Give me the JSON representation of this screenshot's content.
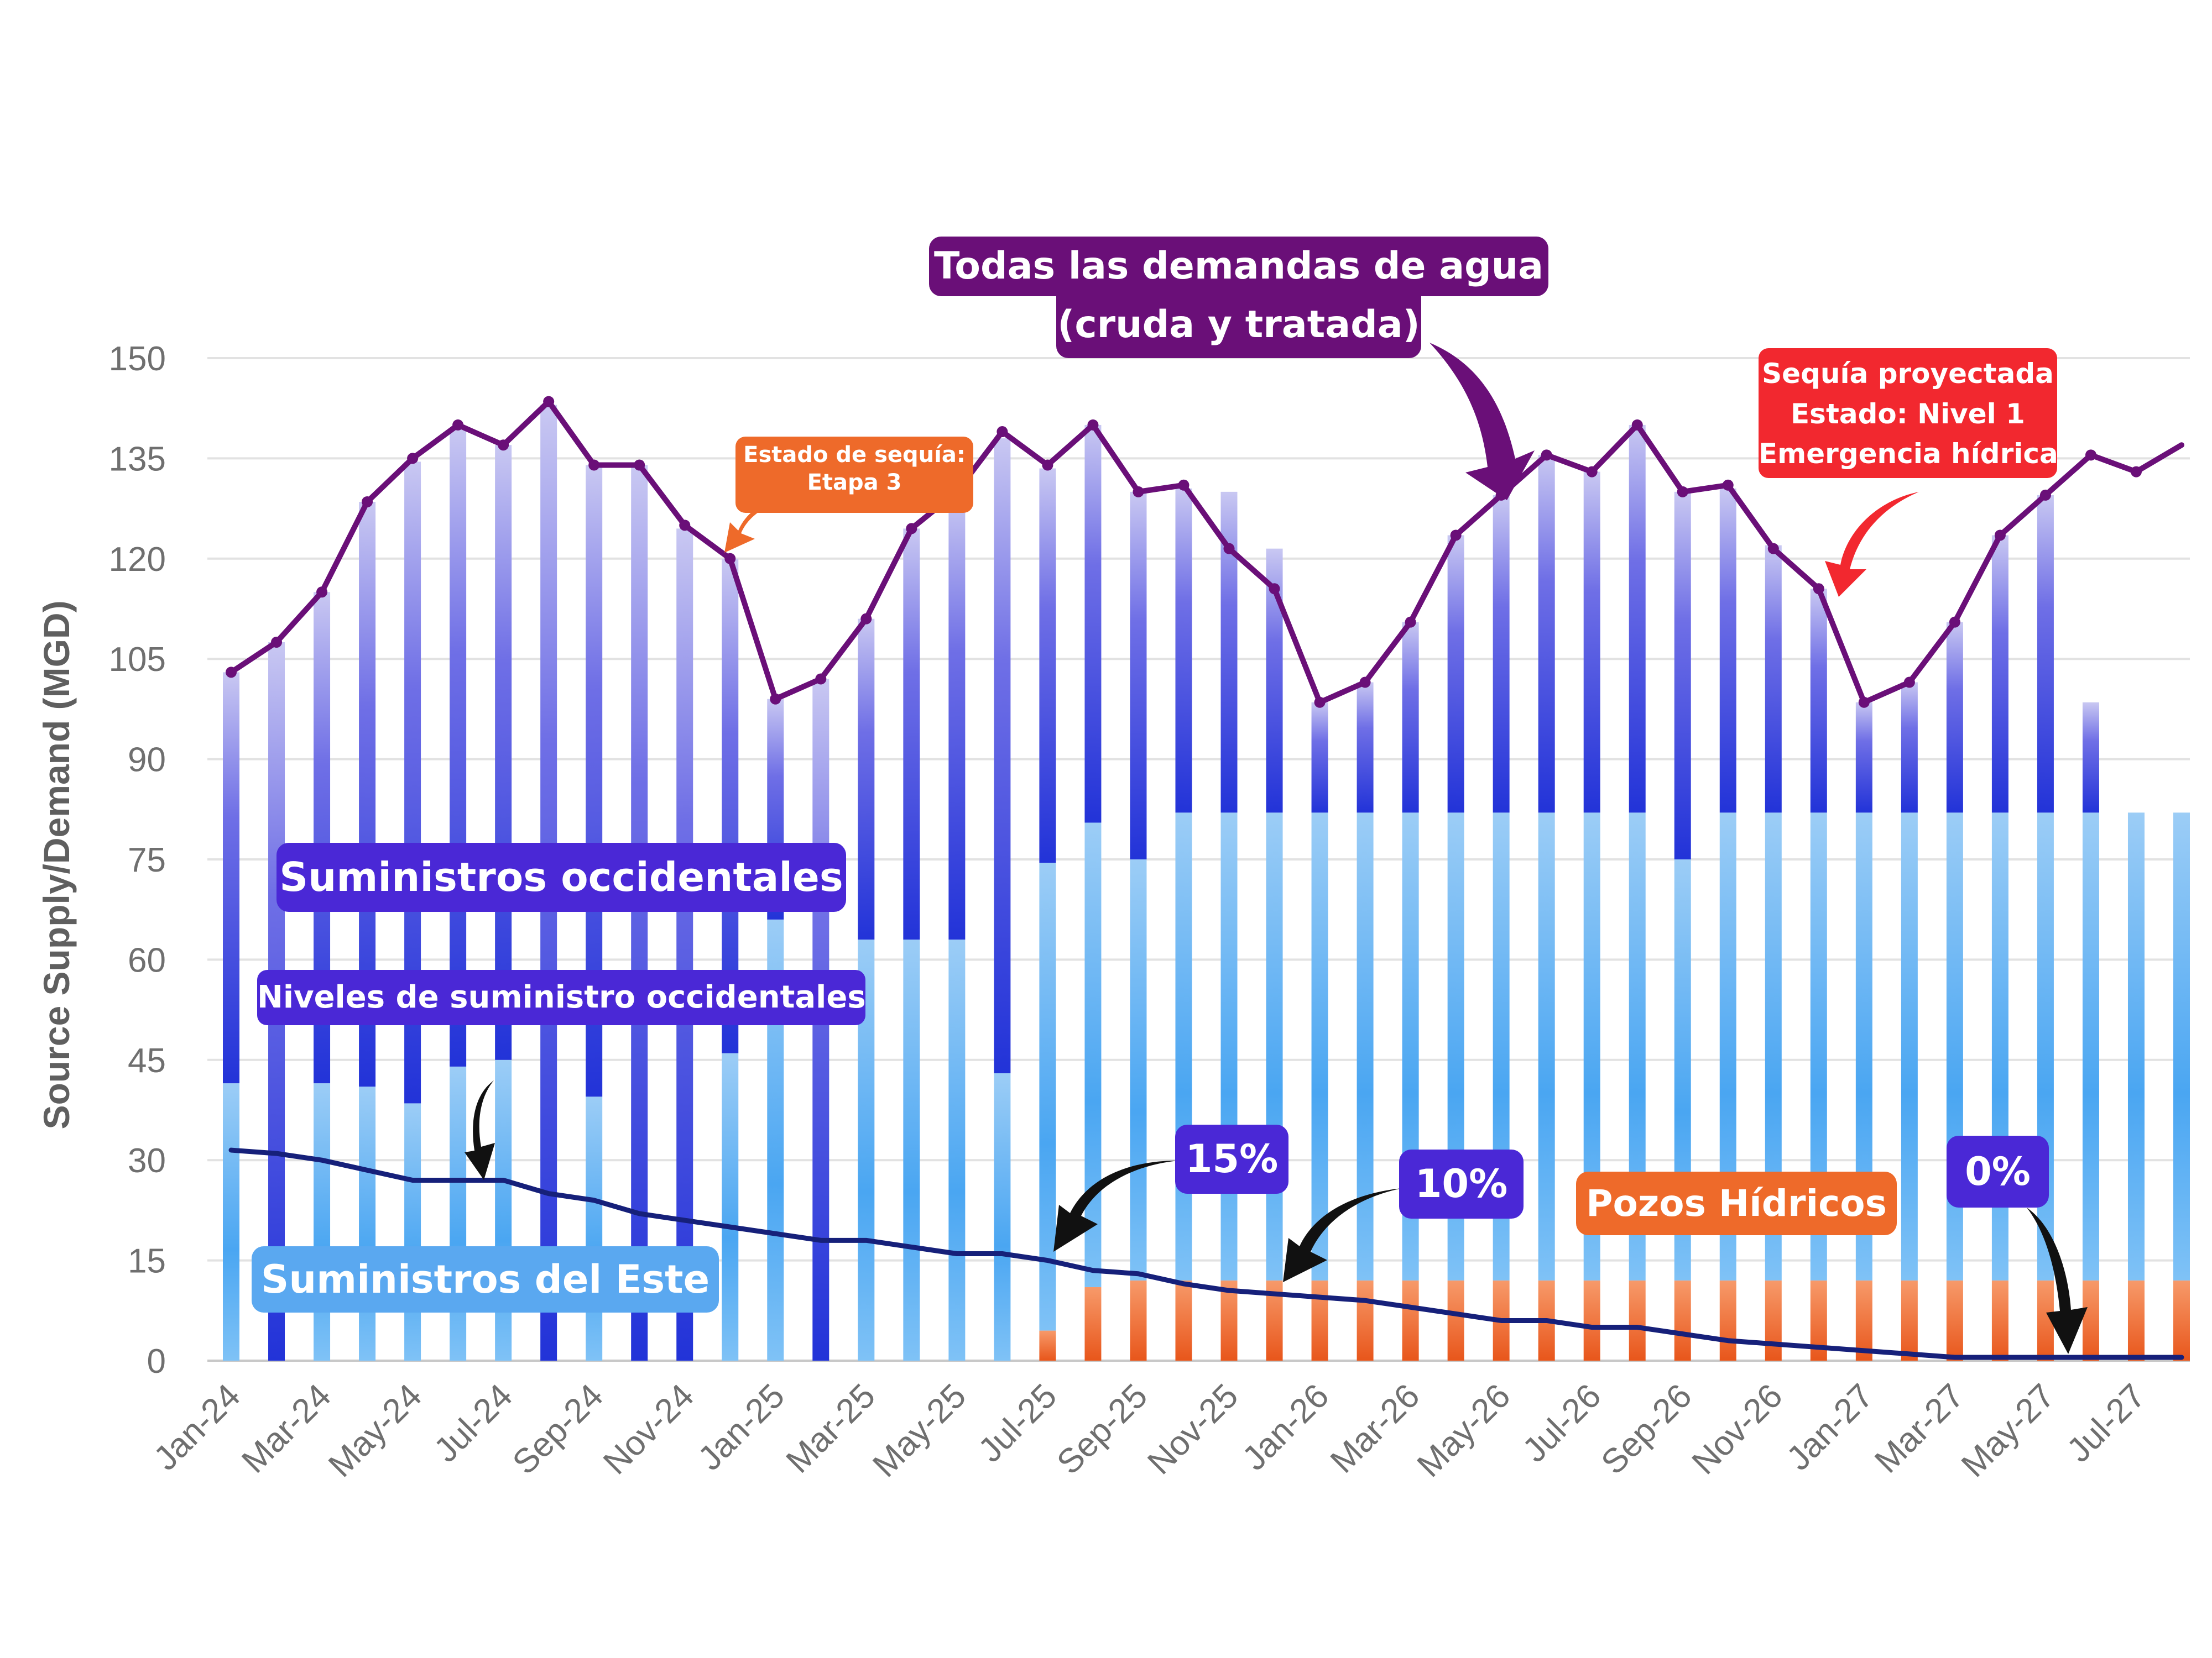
{
  "chart_data": {
    "type": "bar",
    "ylabel": "Source Supply/Demand (MGD)",
    "ylim": [
      0,
      150
    ],
    "yticks": [
      0,
      15,
      30,
      45,
      60,
      75,
      90,
      105,
      120,
      135,
      150
    ],
    "grid": "horizontal",
    "x": [
      "Jan-24",
      "Feb-24",
      "Mar-24",
      "Apr-24",
      "May-24",
      "Jun-24",
      "Jul-24",
      "Aug-24",
      "Sep-24",
      "Oct-24",
      "Nov-24",
      "Dec-24",
      "Jan-25",
      "Feb-25",
      "Mar-25",
      "Apr-25",
      "May-25",
      "Jun-25",
      "Jul-25",
      "Aug-25",
      "Sep-25",
      "Oct-25",
      "Nov-25",
      "Dec-25",
      "Jan-26",
      "Feb-26",
      "Mar-26",
      "Apr-26",
      "May-26",
      "Jun-26",
      "Jul-26",
      "Aug-26",
      "Sep-26",
      "Oct-26",
      "Nov-26",
      "Dec-26",
      "Jan-27",
      "Feb-27",
      "Mar-27",
      "Apr-27",
      "May-27",
      "Jun-27",
      "Jul-27",
      "Aug-27"
    ],
    "xtick_labels": [
      "Jan-24",
      "Mar-24",
      "May-24",
      "Jul-24",
      "Sep-24",
      "Nov-24",
      "Jan-25",
      "Mar-25",
      "May-25",
      "Jul-25",
      "Sep-25",
      "Nov-25",
      "Jan-26",
      "Mar-26",
      "May-26",
      "Jul-26",
      "Sep-26",
      "Nov-26",
      "Jan-27",
      "Mar-27",
      "May-27",
      "Jul-27"
    ],
    "series": [
      {
        "name": "Pozos Hídricos",
        "color": "#ee6a2a",
        "values": [
          0,
          0,
          0,
          0,
          0,
          0,
          0,
          0,
          0,
          0,
          0,
          0,
          0,
          0,
          0,
          0,
          0,
          0,
          4.5,
          11,
          12,
          12,
          12,
          12,
          12,
          12,
          12,
          12,
          12,
          12,
          12,
          12,
          12,
          12,
          12,
          12,
          12,
          12,
          12,
          12,
          12,
          12,
          12,
          12
        ]
      },
      {
        "name": "Suministros del Este",
        "color": "#4aa6f2",
        "values": [
          41.5,
          0,
          41.5,
          41,
          38.5,
          44,
          45,
          0,
          39.5,
          0,
          0,
          46,
          66,
          0,
          63,
          63,
          63,
          43,
          70,
          69.5,
          63,
          70,
          70,
          70,
          70,
          70,
          70,
          70,
          70,
          70,
          70,
          70,
          63,
          70,
          70,
          70,
          70,
          70,
          70,
          70,
          70,
          70,
          70,
          70
        ]
      },
      {
        "name": "Suministros occidentales",
        "color": "#2f3fd6",
        "values": [
          61.5,
          107.5,
          73.5,
          87.5,
          96,
          95.5,
          92,
          143,
          94.5,
          134,
          124.5,
          74,
          33,
          102,
          48,
          61.5,
          66.5,
          95,
          59,
          59.5,
          55,
          48.5,
          48,
          39.5,
          16.5,
          19.5,
          28.5,
          41.5,
          47.5,
          53.5,
          51,
          58,
          55,
          48.5,
          40,
          33.5,
          16.5,
          19.5,
          28.5,
          41.5,
          47.5,
          16.5,
          0,
          0
        ]
      }
    ],
    "line_series": [
      {
        "name": "Todas las demandas de agua (cruda y tratada)",
        "color": "#6a0f78",
        "values": [
          103,
          107.5,
          115,
          128.5,
          135,
          140,
          137,
          143.5,
          134,
          134,
          125,
          120,
          99,
          102,
          111,
          124.5,
          130,
          139,
          134,
          140,
          130,
          131,
          121.5,
          115.5,
          98.5,
          101.5,
          110.5,
          123.5,
          129.5,
          135.5,
          133,
          140,
          130,
          131,
          121.5,
          115.5,
          98.5,
          101.5,
          110.5,
          123.5,
          129.5,
          135.5,
          133,
          137
        ]
      },
      {
        "name": "Niveles de suministro occidentales",
        "color": "#16207a",
        "values": [
          31.5,
          31,
          30,
          28.5,
          27,
          27,
          27,
          25,
          24,
          22,
          21,
          20,
          19,
          18,
          18,
          17,
          16,
          16,
          15,
          13.5,
          13,
          11.5,
          10.5,
          10,
          9.5,
          9,
          8,
          7,
          6,
          6,
          5,
          5,
          4,
          3,
          2.5,
          2,
          1.5,
          1,
          0.5,
          0.5,
          0.5,
          0.5,
          0.5,
          0.5
        ]
      }
    ],
    "annotations": {
      "demand_title_line1": "Todas las demandas de agua",
      "demand_title_line2": "(cruda y tratada)",
      "western_supplies": "Suministros occidentales",
      "western_levels": "Niveles de suministro occidentales",
      "eastern_supplies": "Suministros del Este",
      "wells": "Pozos Hídricos",
      "stage3_line1": "Estado de sequía:",
      "stage3_line2": "Etapa 3",
      "projected_line1": "Sequía proyectada",
      "projected_line2": "Estado: Nivel 1",
      "projected_line3": "Emergencia hídrica*",
      "pct_15": "15%",
      "pct_10": "10%",
      "pct_0": "0%"
    },
    "colors": {
      "demand_label_bg": "#6a0f78",
      "western_label_bg": "#4a28d6",
      "eastern_label_bg": "#5aa8f0",
      "wells_label_bg": "#ee6a2a",
      "stage3_bg": "#ee6a2a",
      "projected_bg": "#f2282f",
      "arrow_dark": "#111111"
    }
  }
}
